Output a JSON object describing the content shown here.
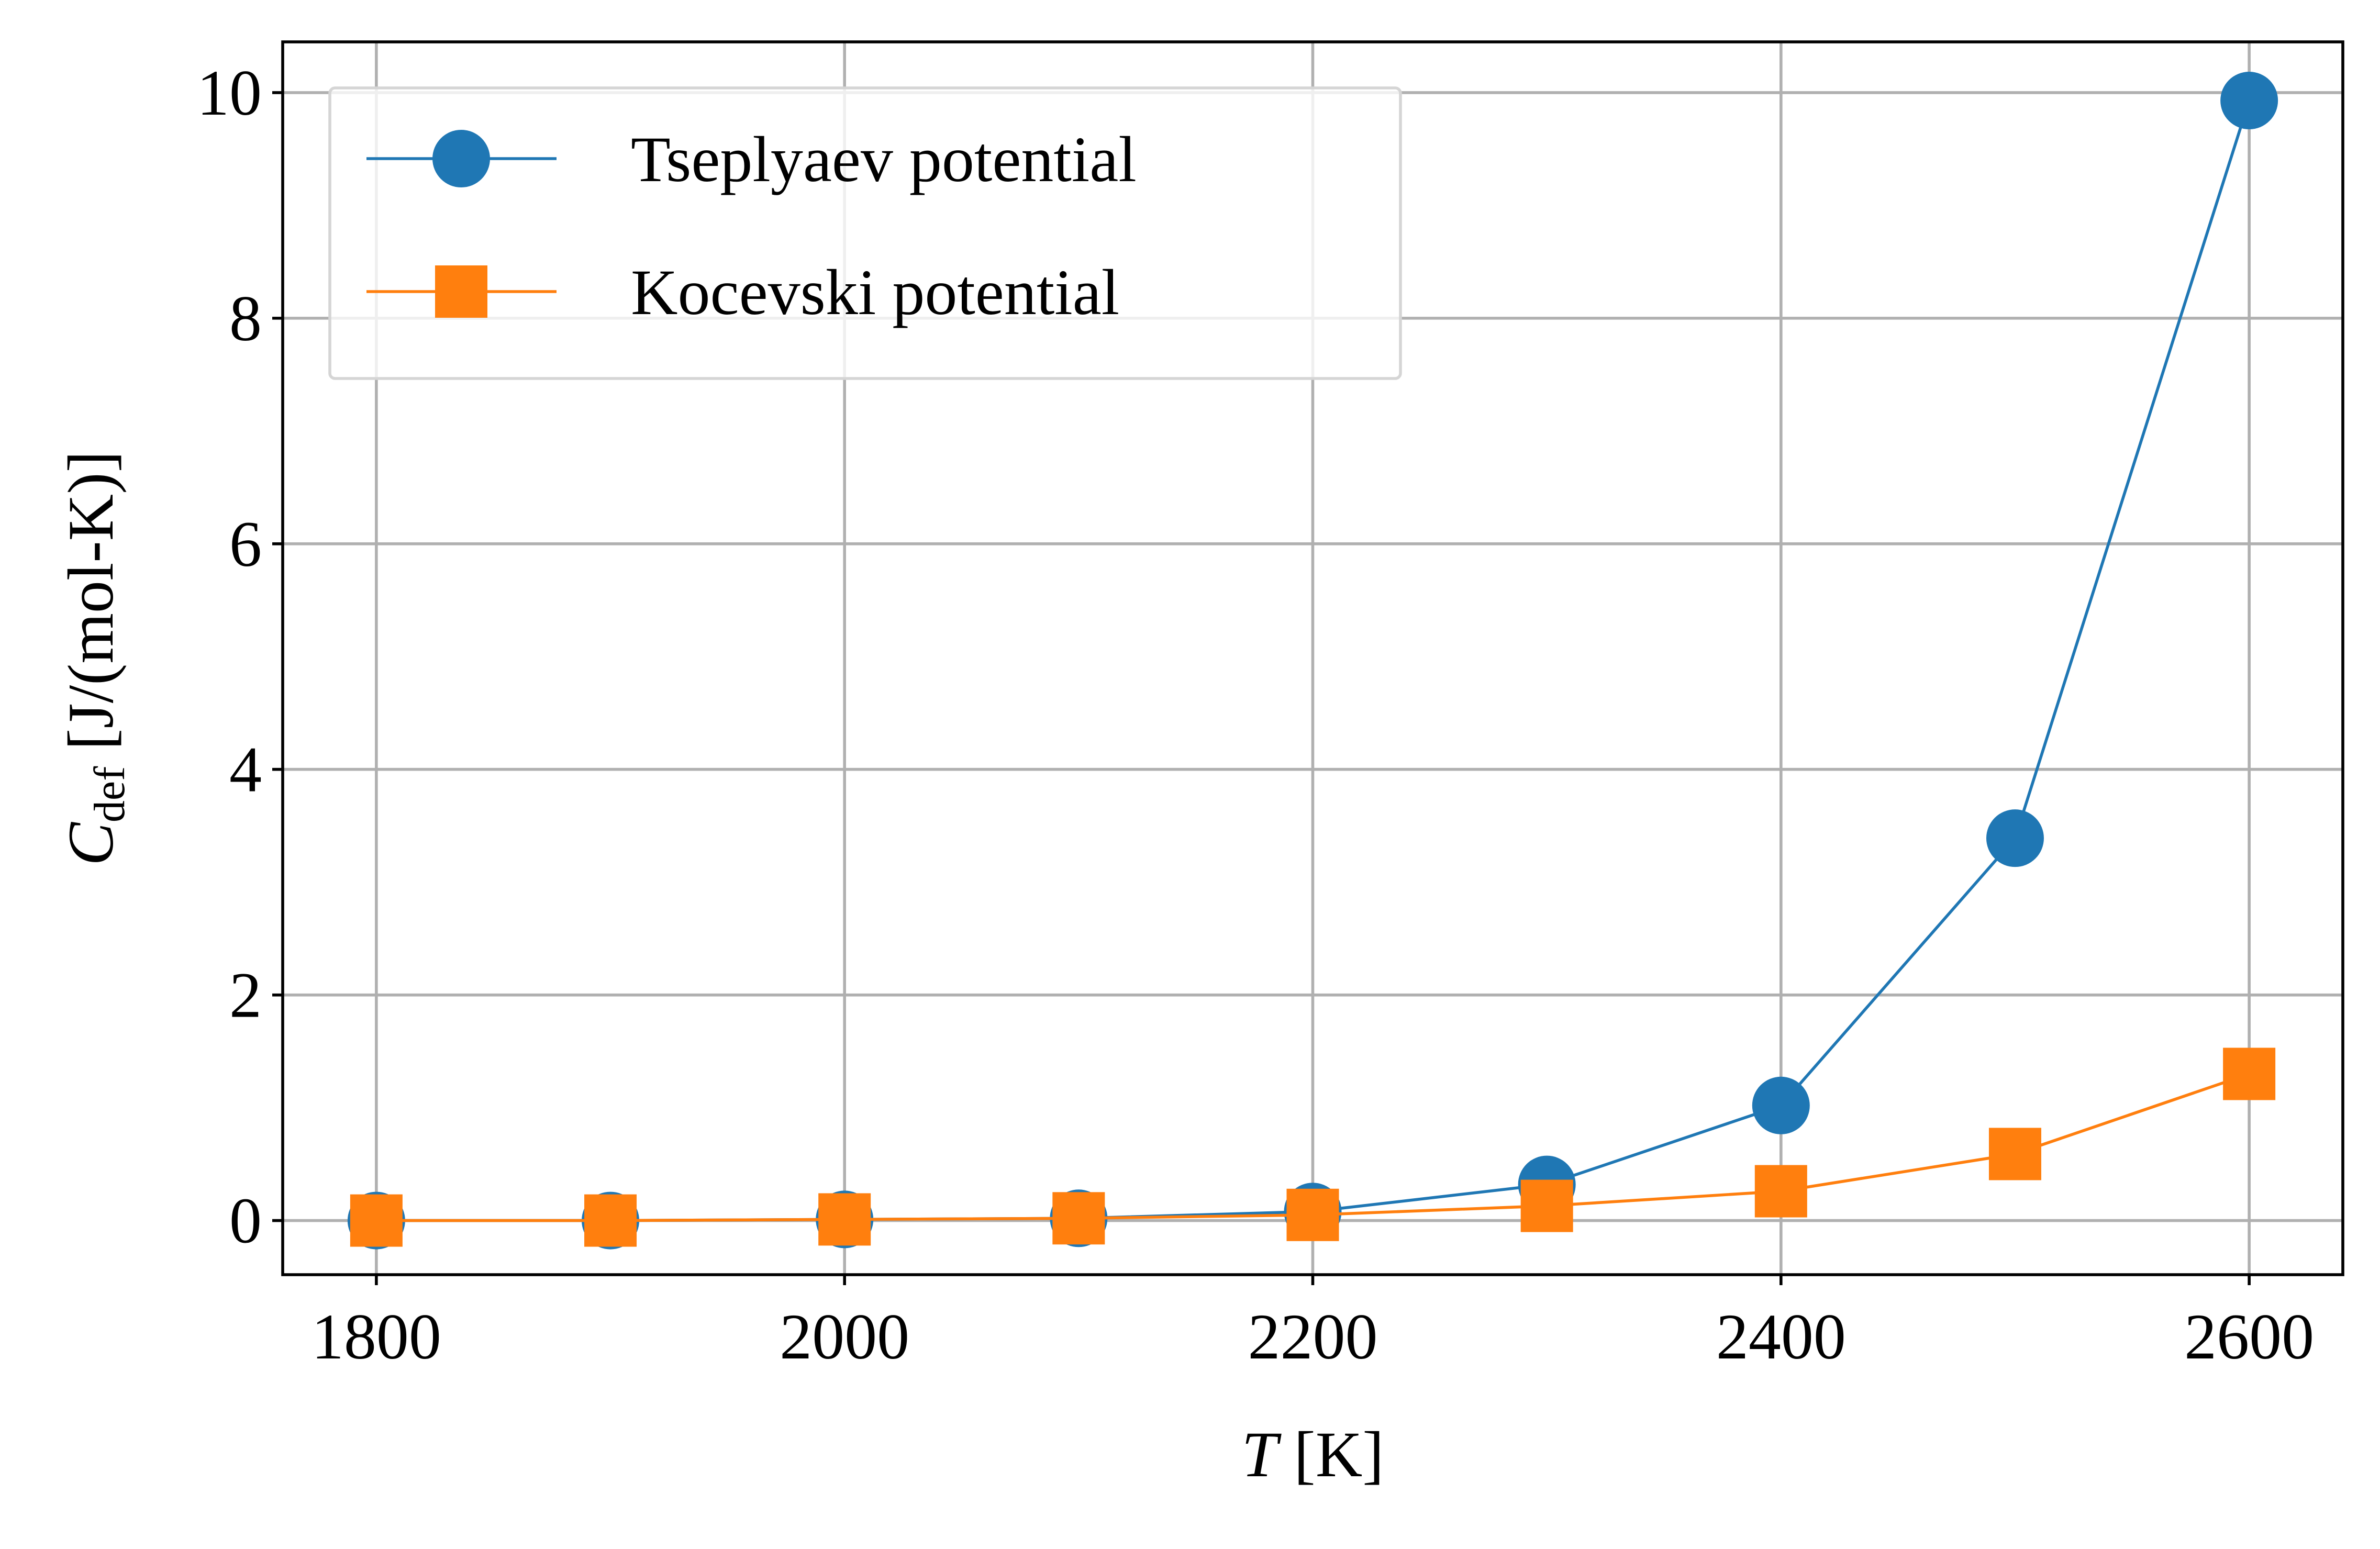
{
  "chart_data": {
    "type": "line",
    "title": "",
    "xlabel": {
      "var": "T",
      "unit": " [K]"
    },
    "ylabel": {
      "var": "C",
      "sub": "def",
      "unit": " [J/(mol-K)]"
    },
    "xlim": [
      1760,
      2640
    ],
    "ylim": [
      -0.48,
      10.45
    ],
    "xticks": [
      1800,
      2000,
      2200,
      2400,
      2600
    ],
    "yticks": [
      0,
      2,
      4,
      6,
      8,
      10
    ],
    "grid": true,
    "legend_position": "upper-left",
    "x": [
      1800,
      1900,
      2000,
      2100,
      2200,
      2300,
      2400,
      2500,
      2600
    ],
    "series": [
      {
        "name": "Tseplyaev potential",
        "color": "#1f77b4",
        "marker": "circle",
        "values": [
          0.0,
          0.0,
          0.01,
          0.02,
          0.08,
          0.32,
          1.02,
          3.39,
          9.93
        ]
      },
      {
        "name": "Kocevski potential",
        "color": "#ff7f0e",
        "marker": "square",
        "values": [
          0.0,
          0.0,
          0.01,
          0.02,
          0.05,
          0.13,
          0.26,
          0.59,
          1.3
        ]
      }
    ]
  }
}
